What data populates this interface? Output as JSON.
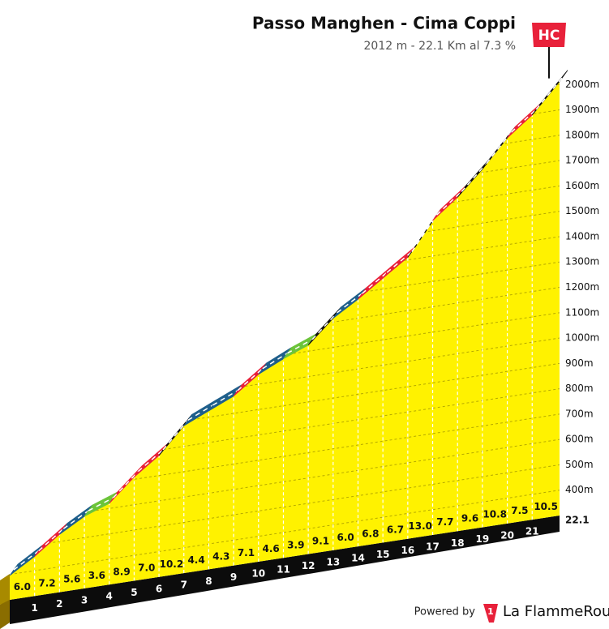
{
  "chart_data": {
    "type": "area",
    "title": "Passo Manghen - Cima Coppi",
    "subtitle": "2012 m - 22.1 Km al 7.3 %",
    "badge": "HC",
    "x": [
      1,
      2,
      3,
      4,
      5,
      6,
      7,
      8,
      9,
      10,
      11,
      12,
      13,
      14,
      15,
      16,
      17,
      18,
      19,
      20,
      21,
      22.1
    ],
    "xlim": [
      0,
      22.1
    ],
    "start_elevation": 396,
    "values": [
      6.0,
      7.2,
      5.6,
      3.6,
      8.9,
      7.0,
      10.2,
      4.4,
      4.3,
      7.1,
      4.6,
      3.9,
      9.1,
      6.0,
      6.8,
      6.7,
      13.0,
      7.7,
      9.6,
      10.8,
      7.5,
      10.5
    ],
    "value_labels": [
      "6.0",
      "7.2",
      "5.6",
      "3.6",
      "8.9",
      "7.0",
      "10.2",
      "4.4",
      "4.3",
      "7.1",
      "4.6",
      "3.9",
      "9.1",
      "6.0",
      "6.8",
      "6.7",
      "13.0",
      "7.7",
      "9.6",
      "10.8",
      "7.5",
      "10.5"
    ],
    "segment_colors": [
      "#1f5f8b",
      "#e8213a",
      "#1f5f8b",
      "#6cc43a",
      "#e8213a",
      "#e8213a",
      "#111111",
      "#1f5f8b",
      "#1f5f8b",
      "#e8213a",
      "#1f5f8b",
      "#6cc43a",
      "#111111",
      "#1f5f8b",
      "#e8213a",
      "#e8213a",
      "#111111",
      "#e8213a",
      "#111111",
      "#111111",
      "#e8213a",
      "#111111"
    ],
    "fill_color": "#fff200",
    "ylim": [
      300,
      2100
    ],
    "yticks": [
      {
        "value": 400,
        "label": "400m"
      },
      {
        "value": 500,
        "label": "500m"
      },
      {
        "value": 600,
        "label": "600m"
      },
      {
        "value": 700,
        "label": "700m"
      },
      {
        "value": 800,
        "label": "800m"
      },
      {
        "value": 900,
        "label": "900m"
      },
      {
        "value": 1000,
        "label": "1000m"
      },
      {
        "value": 1100,
        "label": "1100m"
      },
      {
        "value": 1200,
        "label": "1200m"
      },
      {
        "value": 1300,
        "label": "1300m"
      },
      {
        "value": 1400,
        "label": "1400m"
      },
      {
        "value": 1500,
        "label": "1500m"
      },
      {
        "value": 1600,
        "label": "1600m"
      },
      {
        "value": 1700,
        "label": "1700m"
      },
      {
        "value": 1800,
        "label": "1800m"
      },
      {
        "value": 1900,
        "label": "1900m"
      },
      {
        "value": 2000,
        "label": "2000m"
      }
    ],
    "grid": true
  },
  "footer": {
    "powered_by": "Powered by",
    "logo_mark": "1",
    "brand": "La FlammeRouge"
  }
}
